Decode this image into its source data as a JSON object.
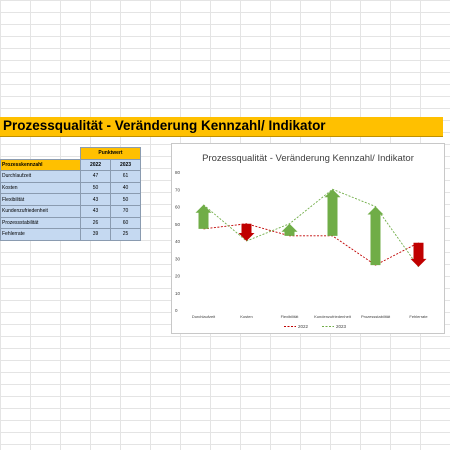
{
  "sheet_title": "Prozessqualität - Veränderung Kennzahl/ Indikator",
  "table": {
    "group_header": "Punktwert",
    "label_header": "Prozesskennzahl",
    "year_headers": [
      "2022",
      "2023"
    ],
    "rows": [
      {
        "label": "Durchlaufzeit",
        "v2022": "47",
        "v2023": "61"
      },
      {
        "label": "Kosten",
        "v2022": "50",
        "v2023": "40"
      },
      {
        "label": "Flexibilität",
        "v2022": "43",
        "v2023": "50"
      },
      {
        "label": "Kundenzufriedenheit",
        "v2022": "43",
        "v2023": "70"
      },
      {
        "label": "Prozessstabilität",
        "v2022": "26",
        "v2023": "60"
      },
      {
        "label": "Fehlerrate",
        "v2022": "39",
        "v2023": "25"
      }
    ]
  },
  "chart_data": {
    "type": "line",
    "title": "Prozessqualität - Veränderung Kennzahl/ Indikator",
    "categories": [
      "Durchlaufzeit",
      "Kosten",
      "Flexibilität",
      "Kundenzufriedenheit",
      "Prozessstabilität",
      "Fehlerrate"
    ],
    "series": [
      {
        "name": "2022",
        "values": [
          47,
          50,
          43,
          43,
          26,
          39
        ],
        "color": "#c00000",
        "style": "dashed"
      },
      {
        "name": "2023",
        "values": [
          61,
          40,
          50,
          70,
          60,
          25
        ],
        "color": "#70ad47",
        "style": "dashed"
      }
    ],
    "indicators": {
      "up_color": "#70ad47",
      "down_color": "#c00000"
    },
    "ylim": [
      0,
      80
    ],
    "yticks": [
      "0",
      "10",
      "20",
      "30",
      "40",
      "50",
      "60",
      "70",
      "80"
    ],
    "legend": "bottom",
    "grid": false
  }
}
